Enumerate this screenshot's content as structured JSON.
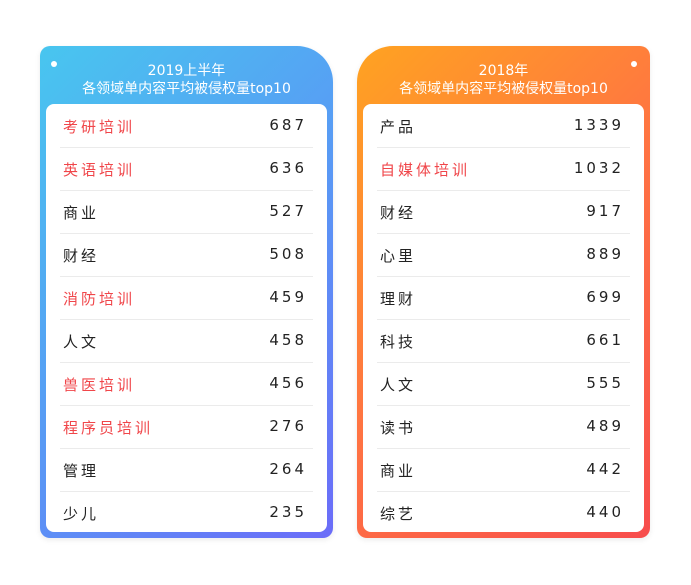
{
  "accent": {
    "highlight_text": "#f0464a",
    "left_gradient": [
      "#48c6ef",
      "#6b6cf8"
    ],
    "right_gradient": [
      "#ffa321",
      "#f74c4c"
    ]
  },
  "left": {
    "title_line1": "2019上半年",
    "title_line2": "各领域单内容平均被侵权量top10",
    "rows": [
      {
        "name": "考研培训",
        "value": "687",
        "highlight": true
      },
      {
        "name": "英语培训",
        "value": "636",
        "highlight": true
      },
      {
        "name": "商业",
        "value": "527",
        "highlight": false
      },
      {
        "name": "财经",
        "value": "508",
        "highlight": false
      },
      {
        "name": "消防培训",
        "value": "459",
        "highlight": true
      },
      {
        "name": "人文",
        "value": "458",
        "highlight": false
      },
      {
        "name": "兽医培训",
        "value": "456",
        "highlight": true
      },
      {
        "name": "程序员培训",
        "value": "276",
        "highlight": true
      },
      {
        "name": "管理",
        "value": "264",
        "highlight": false
      },
      {
        "name": "少儿",
        "value": "235",
        "highlight": false
      }
    ]
  },
  "right": {
    "title_line1": "2018年",
    "title_line2": "各领域单内容平均被侵权量top10",
    "rows": [
      {
        "name": "产品",
        "value": "1339",
        "highlight": false
      },
      {
        "name": "自媒体培训",
        "value": "1032",
        "highlight": true
      },
      {
        "name": "财经",
        "value": "917",
        "highlight": false
      },
      {
        "name": "心里",
        "value": "889",
        "highlight": false
      },
      {
        "name": "理财",
        "value": "699",
        "highlight": false
      },
      {
        "name": "科技",
        "value": "661",
        "highlight": false
      },
      {
        "name": "人文",
        "value": "555",
        "highlight": false
      },
      {
        "name": "读书",
        "value": "489",
        "highlight": false
      },
      {
        "name": "商业",
        "value": "442",
        "highlight": false
      },
      {
        "name": "综艺",
        "value": "440",
        "highlight": false
      }
    ]
  }
}
